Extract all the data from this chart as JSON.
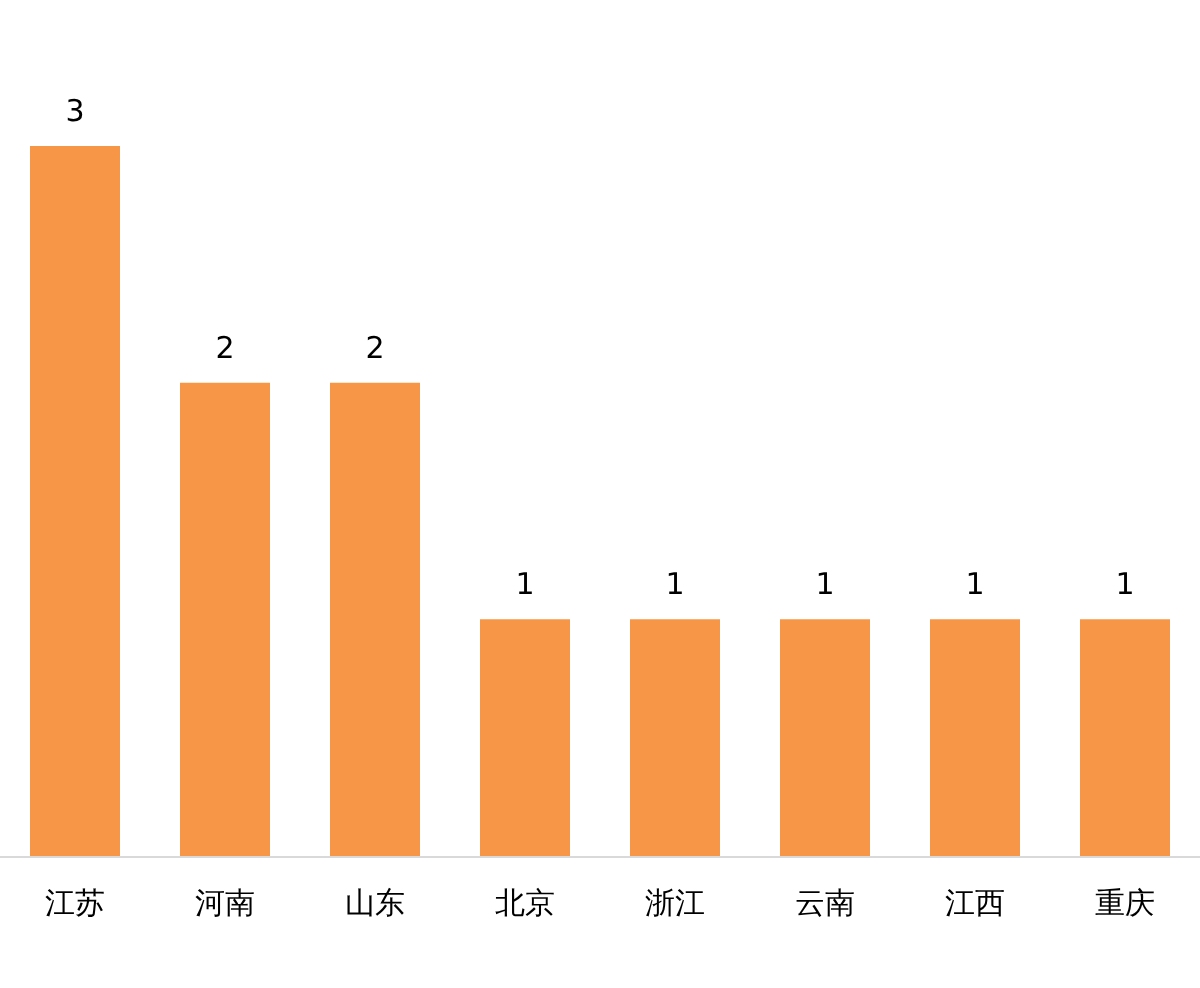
{
  "chart_data": {
    "type": "bar",
    "categories": [
      "江苏",
      "河南",
      "山东",
      "北京",
      "浙江",
      "云南",
      "江西",
      "重庆"
    ],
    "values": [
      3,
      2,
      2,
      1,
      1,
      1,
      1,
      1
    ],
    "color": "#f79646",
    "data_labels": true
  }
}
